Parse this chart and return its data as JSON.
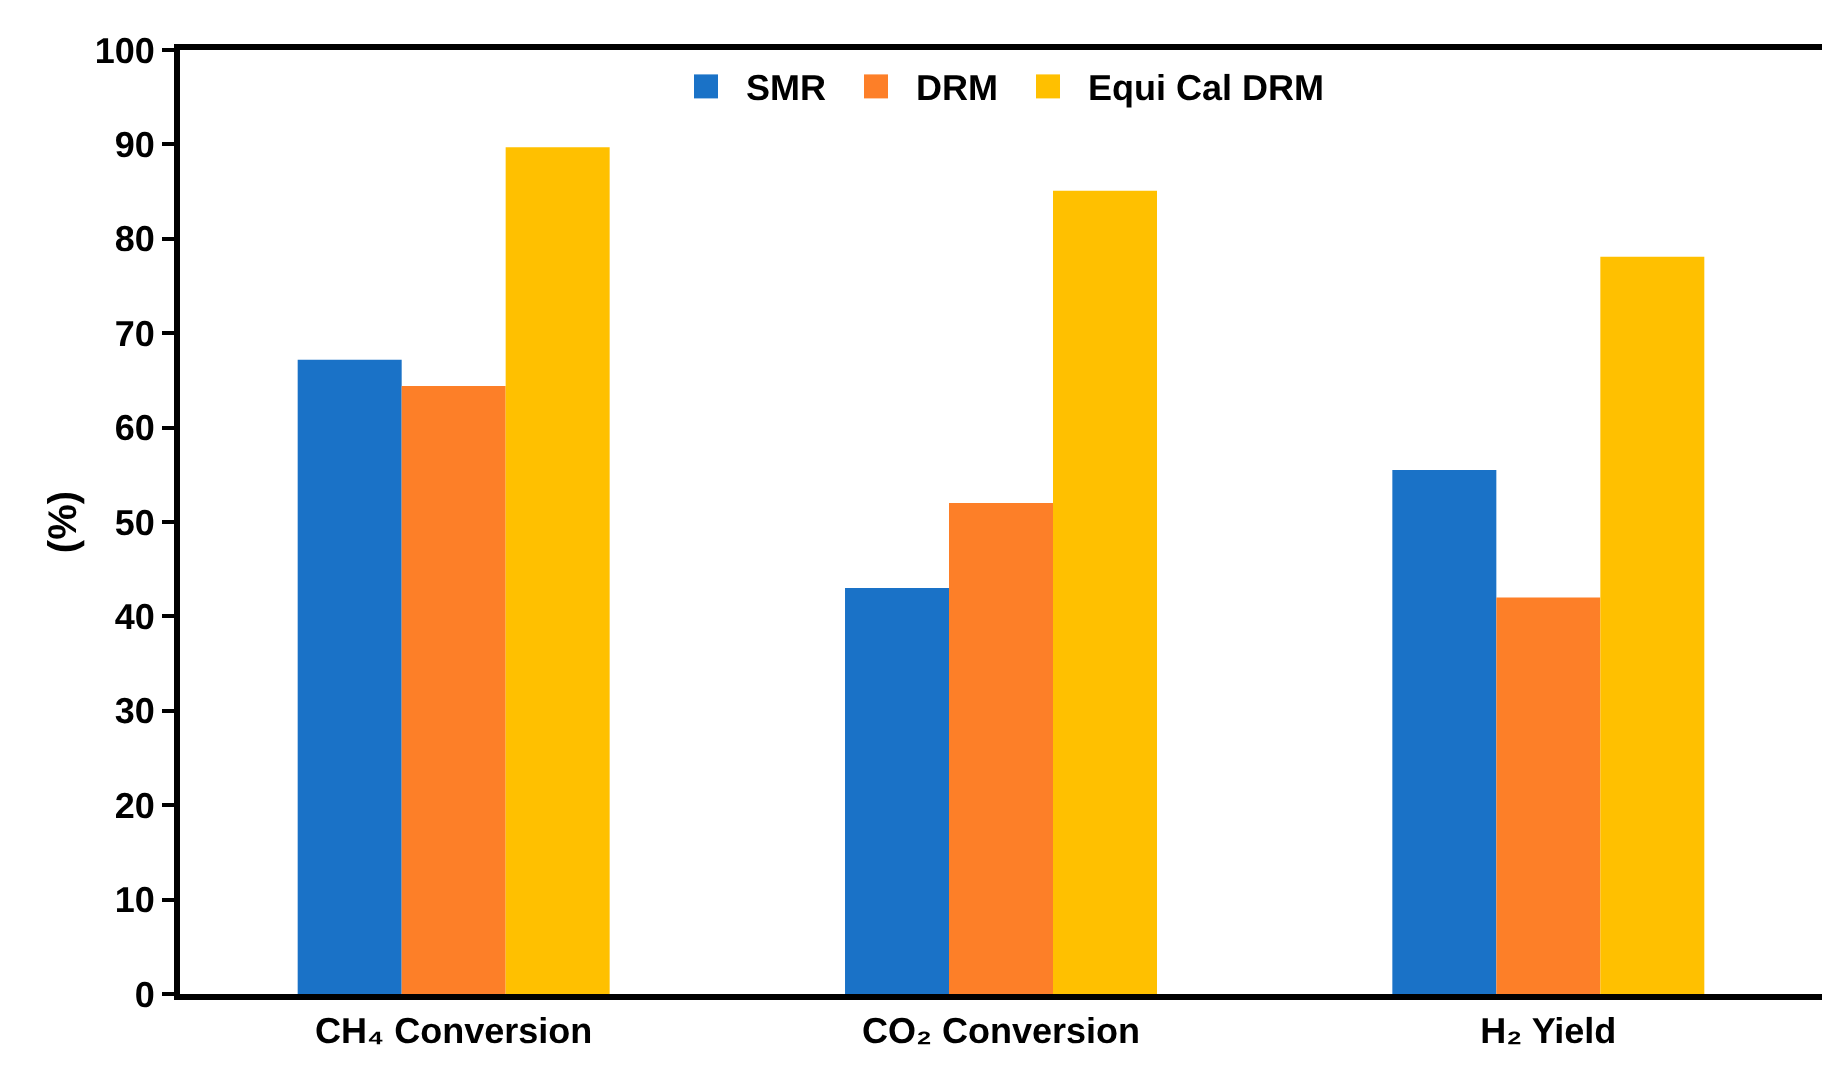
{
  "chart_data": {
    "type": "bar",
    "ylabel": "(%)",
    "categories": [
      "CH₄ Conversion",
      "CO₂ Conversion",
      "H₂ Yield"
    ],
    "series": [
      {
        "name": "SMR",
        "color": "#1a72c7",
        "values": [
          67.2,
          43,
          55.5
        ]
      },
      {
        "name": "DRM",
        "color": "#fd7f28",
        "values": [
          64.4,
          52,
          42
        ]
      },
      {
        "name": "Equi Cal DRM",
        "color": "#ffc000",
        "values": [
          89.7,
          85.1,
          78.1
        ]
      }
    ],
    "ylim": [
      0,
      100
    ],
    "yticks": [
      0,
      10,
      20,
      30,
      40,
      50,
      60,
      70,
      80,
      90,
      100
    ],
    "grid": false,
    "legend": "top"
  }
}
